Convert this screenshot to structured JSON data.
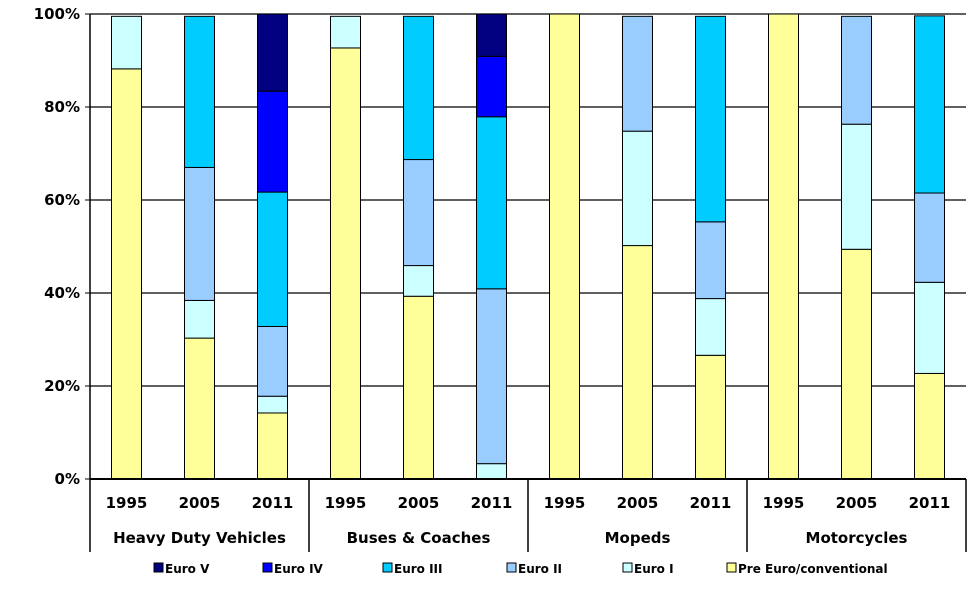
{
  "chart_data": {
    "type": "bar",
    "stacked": true,
    "title": "",
    "xlabel": "",
    "ylabel": "",
    "ylim": [
      0,
      100
    ],
    "y_ticks": [
      "0%",
      "20%",
      "40%",
      "60%",
      "80%",
      "100%"
    ],
    "grid": true,
    "legend_position": "bottom",
    "groups": [
      {
        "label": "Heavy Duty Vehicles",
        "years": [
          "1995",
          "2005",
          "2011"
        ]
      },
      {
        "label": "Buses & Coaches",
        "years": [
          "1995",
          "2005",
          "2011"
        ]
      },
      {
        "label": "Mopeds",
        "years": [
          "1995",
          "2005",
          "2011"
        ]
      },
      {
        "label": "Motorcycles",
        "years": [
          "1995",
          "2005",
          "2011"
        ]
      }
    ],
    "series": [
      {
        "name": "Pre Euro/conventional",
        "color": "#ffff99",
        "values": [
          88.2,
          30.3,
          14.2,
          92.7,
          39.3,
          0.0,
          100.0,
          50.2,
          26.6,
          100.0,
          49.4,
          22.7
        ]
      },
      {
        "name": "Euro I",
        "color": "#ccffff",
        "values": [
          11.3,
          8.1,
          3.6,
          6.8,
          6.6,
          3.3,
          0.0,
          24.6,
          12.2,
          0.0,
          26.9,
          19.6
        ]
      },
      {
        "name": "Euro II",
        "color": "#99ccff",
        "values": [
          0.0,
          28.6,
          15.0,
          0.0,
          22.8,
          37.6,
          0.0,
          24.7,
          16.5,
          0.0,
          23.2,
          19.2
        ]
      },
      {
        "name": "Euro III",
        "color": "#00ccff",
        "values": [
          0.0,
          32.5,
          28.9,
          0.0,
          30.8,
          37.0,
          0.0,
          0.0,
          44.2,
          0.0,
          0.0,
          38.1
        ]
      },
      {
        "name": "Euro IV",
        "color": "#0000ff",
        "values": [
          0.0,
          0.0,
          21.7,
          0.0,
          0.0,
          13.0,
          0.0,
          0.0,
          0.0,
          0.0,
          0.0,
          0.0
        ]
      },
      {
        "name": "Euro V",
        "color": "#000080",
        "values": [
          0.0,
          0.0,
          16.6,
          0.0,
          0.0,
          9.1,
          0.0,
          0.0,
          0.0,
          0.0,
          0.0,
          0.0
        ]
      }
    ],
    "legend_order": [
      "Euro V",
      "Euro IV",
      "Euro III",
      "Euro II",
      "Euro I",
      "Pre Euro/conventional"
    ]
  }
}
